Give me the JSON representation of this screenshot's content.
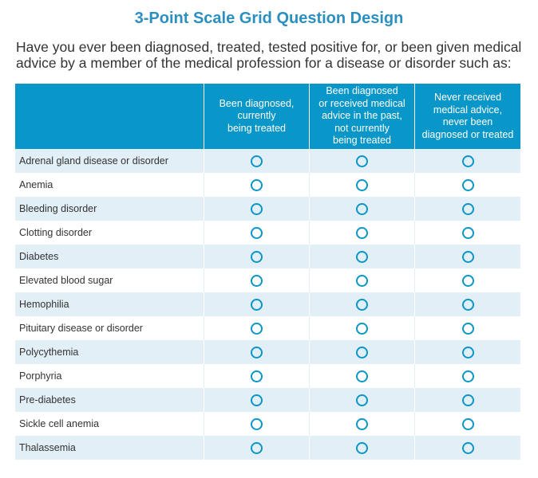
{
  "title": "3-Point Scale Grid Question Design",
  "question": "Have you ever been diagnosed, treated, tested positive for, or been given medical advice by a member of the medical profession for a disease or disorder such as:",
  "columns": [
    "Been diagnosed,\ncurrently\nbeing treated",
    "Been diagnosed\nor received medical\nadvice in the past,\nnot currently\nbeing treated",
    "Never received\nmedical advice,\nnever been\ndiagnosed or treated"
  ],
  "rows": [
    "Adrenal gland disease or disorder",
    "Anemia",
    "Bleeding disorder",
    "Clotting disorder",
    "Diabetes",
    "Elevated blood sugar",
    "Hemophilia",
    "Pituitary disease or disorder",
    "Polycythemia",
    "Porphyria",
    "Pre-diabetes",
    "Sickle cell anemia",
    "Thalassemia"
  ],
  "colors": {
    "accent": "#0996c8",
    "title": "#2b8fc0",
    "stripe": "#e2eff6"
  }
}
